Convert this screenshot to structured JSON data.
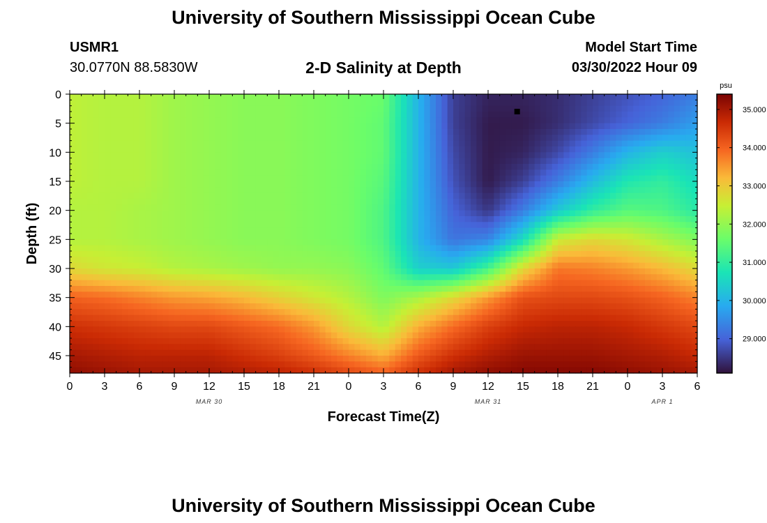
{
  "header": {
    "title": "University of Southern Mississippi Ocean Cube",
    "station_id": "USMR1",
    "station_coords": "30.0770N  88.5830W",
    "plot_title": "2-D Salinity at Depth",
    "model_start_label": "Model Start Time",
    "model_start_value": "03/30/2022 Hour 09"
  },
  "footer": {
    "title": "University of Southern Mississippi Ocean Cube"
  },
  "chart_data": {
    "type": "heatmap",
    "xlabel": "Forecast Time(Z)",
    "ylabel": "Depth (ft)",
    "x_range_hours": [
      0,
      54
    ],
    "x_ticks": [
      "0",
      "3",
      "6",
      "9",
      "12",
      "15",
      "18",
      "21",
      "0",
      "3",
      "6",
      "9",
      "12",
      "15",
      "18",
      "21",
      "0",
      "3",
      "6"
    ],
    "date_labels": [
      {
        "label": "MAR 30",
        "at_hour": 12
      },
      {
        "label": "MAR 31",
        "at_hour": 36
      },
      {
        "label": "APR 1",
        "at_hour": 51
      }
    ],
    "y_range_ft": [
      0,
      48
    ],
    "y_ticks": [
      0,
      5,
      10,
      15,
      20,
      25,
      30,
      35,
      40,
      45
    ],
    "y_reversed": true,
    "colorbar": {
      "unit": "psu",
      "range": [
        28.1,
        35.4
      ],
      "ticks": [
        "35.000",
        "34.000",
        "33.000",
        "32.000",
        "31.000",
        "30.000",
        "29.000"
      ],
      "colormap": "turbo"
    },
    "marker": {
      "hour": 38.5,
      "depth_ft": 3
    },
    "grid": {
      "hours": [
        0,
        3,
        6,
        9,
        12,
        15,
        18,
        21,
        24,
        27,
        30,
        33,
        36,
        39,
        42,
        45,
        48,
        51,
        54
      ],
      "depths_ft": [
        0,
        5,
        10,
        15,
        20,
        25,
        30,
        35,
        40,
        45,
        48
      ],
      "salinity_psu": [
        [
          32.4,
          32.3,
          32.3,
          32.1,
          32.0,
          31.9,
          31.9,
          31.8,
          31.7,
          31.6,
          30.0,
          28.6,
          28.3,
          28.3,
          28.4,
          28.6,
          28.8,
          29.0,
          29.3
        ],
        [
          32.4,
          32.3,
          32.3,
          32.1,
          32.0,
          31.9,
          31.9,
          31.8,
          31.7,
          31.5,
          30.0,
          28.6,
          28.2,
          28.2,
          28.4,
          28.7,
          29.0,
          29.3,
          29.7
        ],
        [
          32.4,
          32.3,
          32.3,
          32.1,
          32.0,
          31.9,
          31.9,
          31.8,
          31.7,
          31.5,
          30.0,
          28.7,
          28.2,
          28.3,
          28.7,
          29.3,
          30.0,
          30.4,
          30.2
        ],
        [
          32.4,
          32.3,
          32.3,
          32.1,
          32.0,
          31.9,
          31.9,
          31.8,
          31.7,
          31.4,
          30.0,
          28.8,
          28.2,
          28.6,
          29.3,
          30.1,
          30.8,
          31.0,
          30.6
        ],
        [
          32.3,
          32.3,
          32.2,
          32.1,
          32.0,
          31.9,
          31.9,
          31.8,
          31.7,
          31.3,
          30.0,
          29.0,
          28.5,
          29.3,
          30.3,
          31.0,
          31.4,
          31.3,
          30.9
        ],
        [
          32.3,
          32.3,
          32.2,
          32.1,
          32.0,
          31.9,
          31.9,
          31.8,
          31.7,
          31.3,
          30.0,
          29.2,
          29.4,
          30.6,
          32.5,
          32.8,
          32.6,
          32.2,
          31.8
        ],
        [
          32.8,
          32.6,
          32.5,
          32.3,
          32.2,
          32.1,
          32.0,
          32.0,
          31.9,
          31.5,
          30.4,
          30.3,
          31.2,
          32.8,
          33.8,
          33.7,
          33.5,
          33.2,
          32.8
        ],
        [
          34.0,
          33.9,
          33.7,
          33.5,
          33.4,
          33.2,
          32.9,
          32.6,
          32.3,
          31.8,
          32.2,
          32.8,
          33.5,
          34.2,
          34.3,
          34.3,
          34.2,
          34.0,
          33.7
        ],
        [
          34.6,
          34.5,
          34.4,
          34.3,
          34.3,
          34.1,
          33.9,
          33.5,
          32.8,
          32.3,
          33.3,
          33.9,
          34.4,
          34.7,
          34.8,
          34.8,
          34.7,
          34.5,
          34.3
        ],
        [
          35.0,
          34.9,
          34.8,
          34.8,
          34.8,
          34.6,
          34.4,
          34.1,
          33.7,
          33.3,
          34.1,
          34.6,
          34.9,
          35.1,
          35.1,
          35.1,
          35.0,
          34.9,
          34.7
        ],
        [
          35.2,
          35.1,
          35.0,
          35.0,
          35.0,
          34.9,
          34.8,
          34.6,
          34.3,
          34.0,
          34.6,
          35.0,
          35.2,
          35.3,
          35.3,
          35.3,
          35.2,
          35.1,
          35.0
        ]
      ]
    }
  }
}
